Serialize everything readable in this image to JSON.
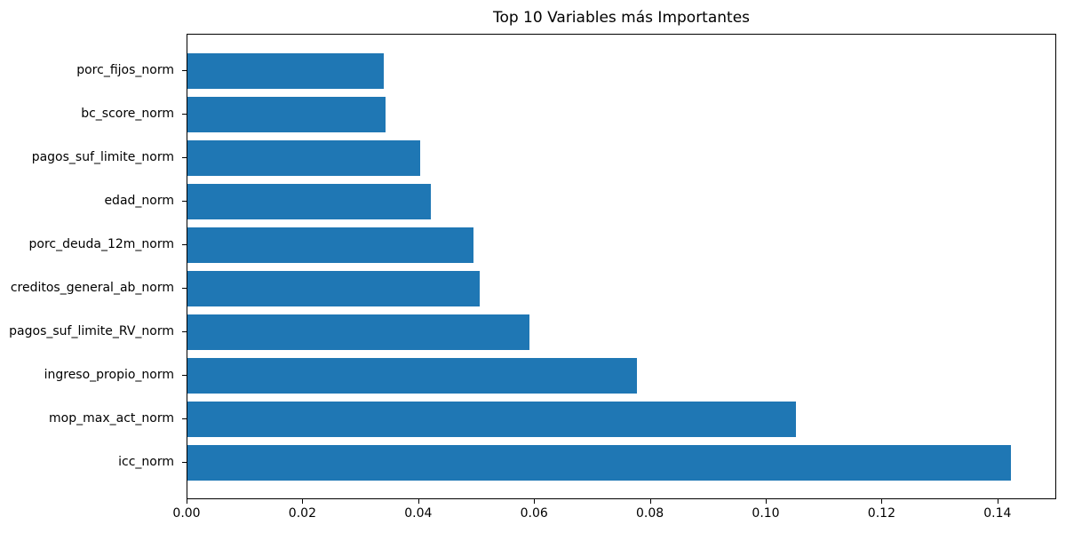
{
  "chart_data": {
    "type": "bar",
    "orientation": "horizontal",
    "title": "Top 10 Variables más Importantes",
    "order": "top-to-bottom",
    "categories": [
      "porc_fijos_norm",
      "bc_score_norm",
      "pagos_suf_limite_norm",
      "edad_norm",
      "porc_deuda_12m_norm",
      "creditos_general_ab_norm",
      "pagos_suf_limite_RV_norm",
      "ingreso_propio_norm",
      "mop_max_act_norm",
      "icc_norm"
    ],
    "values": [
      0.034,
      0.0343,
      0.0402,
      0.0421,
      0.0494,
      0.0505,
      0.0591,
      0.0777,
      0.1052,
      0.1424
    ],
    "xlabel": "",
    "ylabel": "",
    "xlim": [
      0.0,
      0.15
    ],
    "x_ticks": [
      "0.00",
      "0.02",
      "0.04",
      "0.06",
      "0.08",
      "0.10",
      "0.12",
      "0.14"
    ],
    "grid": false,
    "legend": false,
    "bar_color": "#1f77b4",
    "background_color": "#ffffff",
    "text_color": "#000000"
  }
}
